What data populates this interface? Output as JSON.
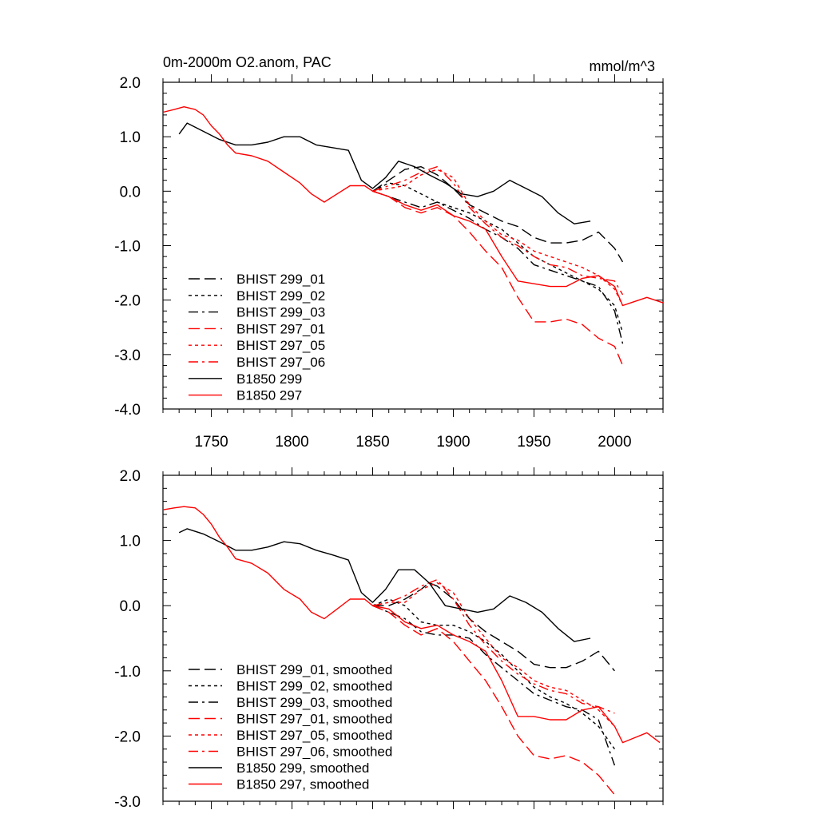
{
  "chart_data": [
    {
      "type": "line",
      "title": "0m-2000m O2.anom, PAC",
      "units": "mmol/m^3",
      "xlim": [
        1720,
        2030
      ],
      "ylim": [
        -4.0,
        2.0
      ],
      "x_ticks": [
        1750,
        1800,
        1850,
        1900,
        1950,
        2000
      ],
      "x_tick_labels": [
        "1750",
        "1800",
        "1850",
        "1900",
        "1950",
        "2000"
      ],
      "y_ticks": [
        2.0,
        1.0,
        0.0,
        -1.0,
        -2.0,
        -3.0,
        -4.0
      ],
      "y_tick_labels": [
        "2.0",
        "1.0",
        "0.0",
        "-1.0",
        "-2.0",
        "-3.0",
        "-4.0"
      ],
      "legend_placement": "lower-left",
      "series": [
        {
          "name": "BHIST 299_01",
          "color": "#000000",
          "dash": "dashed",
          "x": [
            1850,
            1860,
            1870,
            1880,
            1890,
            1900,
            1910,
            1920,
            1930,
            1940,
            1950,
            1960,
            1970,
            1980,
            1990,
            2000,
            2005
          ],
          "y": [
            0.0,
            0.2,
            0.4,
            0.45,
            0.3,
            0.05,
            -0.25,
            -0.4,
            -0.55,
            -0.65,
            -0.85,
            -0.95,
            -0.95,
            -0.9,
            -0.75,
            -1.05,
            -1.3
          ]
        },
        {
          "name": "BHIST 299_02",
          "color": "#000000",
          "dash": "dotted",
          "x": [
            1850,
            1860,
            1870,
            1880,
            1890,
            1900,
            1910,
            1920,
            1930,
            1940,
            1950,
            1960,
            1970,
            1980,
            1990,
            2000,
            2005
          ],
          "y": [
            0.0,
            0.15,
            0.1,
            -0.05,
            -0.2,
            -0.3,
            -0.4,
            -0.55,
            -0.7,
            -0.95,
            -1.2,
            -1.35,
            -1.5,
            -1.65,
            -1.8,
            -2.1,
            -2.6
          ]
        },
        {
          "name": "BHIST 299_03",
          "color": "#000000",
          "dash": "dashdot",
          "x": [
            1850,
            1860,
            1870,
            1880,
            1890,
            1900,
            1910,
            1920,
            1930,
            1940,
            1950,
            1960,
            1970,
            1980,
            1990,
            2000,
            2005
          ],
          "y": [
            0.0,
            -0.1,
            -0.2,
            -0.3,
            -0.2,
            -0.35,
            -0.5,
            -0.7,
            -0.85,
            -1.05,
            -1.35,
            -1.45,
            -1.55,
            -1.65,
            -1.75,
            -2.2,
            -2.8
          ]
        },
        {
          "name": "BHIST 297_01",
          "color": "#ff0000",
          "dash": "dashed",
          "x": [
            1850,
            1860,
            1870,
            1880,
            1890,
            1900,
            1910,
            1920,
            1930,
            1940,
            1950,
            1960,
            1970,
            1980,
            1990,
            2000,
            2005
          ],
          "y": [
            0.0,
            -0.1,
            -0.3,
            -0.4,
            -0.3,
            -0.45,
            -0.75,
            -1.1,
            -1.4,
            -1.95,
            -2.4,
            -2.4,
            -2.35,
            -2.45,
            -2.7,
            -2.85,
            -3.2
          ]
        },
        {
          "name": "BHIST 297_05",
          "color": "#ff0000",
          "dash": "dotted",
          "x": [
            1850,
            1860,
            1870,
            1880,
            1890,
            1900,
            1910,
            1920,
            1930,
            1940,
            1950,
            1960,
            1970,
            1980,
            1990,
            2000,
            2005
          ],
          "y": [
            0.0,
            0.05,
            0.1,
            0.3,
            0.4,
            0.25,
            -0.25,
            -0.55,
            -0.8,
            -0.9,
            -1.1,
            -1.2,
            -1.3,
            -1.4,
            -1.55,
            -1.8,
            -2.1
          ]
        },
        {
          "name": "BHIST 297_06",
          "color": "#ff0000",
          "dash": "dashdot",
          "x": [
            1850,
            1860,
            1870,
            1880,
            1890,
            1900,
            1910,
            1920,
            1930,
            1940,
            1950,
            1960,
            1970,
            1980,
            1990,
            2000,
            2005
          ],
          "y": [
            0.0,
            0.1,
            0.2,
            0.35,
            0.45,
            0.15,
            -0.3,
            -0.6,
            -0.85,
            -1.0,
            -1.2,
            -1.35,
            -1.4,
            -1.55,
            -1.6,
            -1.65,
            -1.9
          ]
        },
        {
          "name": "B1850 299",
          "color": "#000000",
          "dash": "solid",
          "x": [
            1730,
            1735,
            1745,
            1755,
            1765,
            1775,
            1785,
            1795,
            1805,
            1815,
            1825,
            1835,
            1843,
            1850,
            1858,
            1866,
            1876,
            1885,
            1895,
            1905,
            1915,
            1925,
            1935,
            1945,
            1955,
            1965,
            1975,
            1985
          ],
          "y": [
            1.05,
            1.25,
            1.1,
            0.95,
            0.85,
            0.85,
            0.9,
            1.0,
            1.0,
            0.85,
            0.8,
            0.75,
            0.2,
            0.05,
            0.25,
            0.55,
            0.45,
            0.3,
            0.15,
            -0.05,
            -0.1,
            0.0,
            0.2,
            0.05,
            -0.1,
            -0.4,
            -0.6,
            -0.55
          ]
        },
        {
          "name": "B1850 297",
          "color": "#ff0000",
          "dash": "solid",
          "x": [
            1720,
            1727,
            1733,
            1740,
            1745,
            1750,
            1755,
            1760,
            1765,
            1775,
            1785,
            1795,
            1805,
            1812,
            1820,
            1828,
            1836,
            1845,
            1850,
            1860,
            1870,
            1880,
            1890,
            1900,
            1910,
            1920,
            1930,
            1940,
            1950,
            1960,
            1970,
            1980,
            1990,
            2000,
            2005,
            2010,
            2020,
            2025,
            2030
          ],
          "y": [
            1.45,
            1.5,
            1.55,
            1.5,
            1.4,
            1.2,
            1.05,
            0.85,
            0.7,
            0.65,
            0.55,
            0.35,
            0.15,
            -0.05,
            -0.2,
            -0.05,
            0.1,
            0.1,
            0.0,
            -0.1,
            -0.25,
            -0.35,
            -0.25,
            -0.45,
            -0.55,
            -0.7,
            -1.2,
            -1.65,
            -1.7,
            -1.75,
            -1.75,
            -1.6,
            -1.55,
            -1.75,
            -2.1,
            -2.05,
            -1.95,
            -2.0,
            -2.05
          ]
        }
      ]
    },
    {
      "type": "line",
      "title": "",
      "units": "",
      "xlim": [
        1720,
        2030
      ],
      "ylim": [
        -3.0,
        2.0
      ],
      "x_ticks": [
        1750,
        1800,
        1850,
        1900,
        1950,
        2000
      ],
      "x_tick_labels": [
        "",
        "",
        "",
        "",
        "",
        ""
      ],
      "y_ticks": [
        2.0,
        1.0,
        0.0,
        -1.0,
        -2.0,
        -3.0
      ],
      "y_tick_labels": [
        "2.0",
        "1.0",
        "0.0",
        "-1.0",
        "-2.0",
        "-3.0"
      ],
      "legend_placement": "lower-left",
      "series": [
        {
          "name": "BHIST 299_01, smoothed",
          "color": "#000000",
          "dash": "dashed",
          "x": [
            1850,
            1860,
            1870,
            1880,
            1885,
            1890,
            1900,
            1910,
            1920,
            1930,
            1940,
            1950,
            1960,
            1970,
            1980,
            1990,
            2000
          ],
          "y": [
            0.0,
            0.0,
            0.1,
            0.25,
            0.35,
            0.3,
            0.1,
            -0.2,
            -0.4,
            -0.55,
            -0.7,
            -0.9,
            -0.95,
            -0.95,
            -0.85,
            -0.7,
            -1.0
          ]
        },
        {
          "name": "BHIST 299_02, smoothed",
          "color": "#000000",
          "dash": "dotted",
          "x": [
            1850,
            1860,
            1870,
            1880,
            1890,
            1900,
            1910,
            1920,
            1930,
            1940,
            1950,
            1960,
            1970,
            1980,
            1990,
            2000
          ],
          "y": [
            0.0,
            0.1,
            0.0,
            -0.25,
            -0.3,
            -0.3,
            -0.4,
            -0.55,
            -0.75,
            -1.0,
            -1.25,
            -1.4,
            -1.5,
            -1.65,
            -1.85,
            -2.2
          ]
        },
        {
          "name": "BHIST 299_03, smoothed",
          "color": "#000000",
          "dash": "dashdot",
          "x": [
            1850,
            1860,
            1870,
            1880,
            1890,
            1900,
            1910,
            1920,
            1930,
            1940,
            1950,
            1960,
            1970,
            1980,
            1990,
            2000
          ],
          "y": [
            0.0,
            -0.1,
            -0.2,
            -0.4,
            -0.45,
            -0.45,
            -0.5,
            -0.75,
            -0.95,
            -1.15,
            -1.35,
            -1.45,
            -1.55,
            -1.6,
            -1.75,
            -2.45
          ]
        },
        {
          "name": "BHIST 297_01, smoothed",
          "color": "#ff0000",
          "dash": "dashed",
          "x": [
            1850,
            1860,
            1870,
            1880,
            1890,
            1900,
            1910,
            1920,
            1930,
            1940,
            1950,
            1960,
            1970,
            1980,
            1990,
            2000
          ],
          "y": [
            0.0,
            -0.1,
            -0.3,
            -0.45,
            -0.35,
            -0.55,
            -0.85,
            -1.15,
            -1.55,
            -2.0,
            -2.3,
            -2.35,
            -2.3,
            -2.4,
            -2.6,
            -2.9
          ]
        },
        {
          "name": "BHIST 297_05, smoothed",
          "color": "#ff0000",
          "dash": "dotted",
          "x": [
            1850,
            1860,
            1870,
            1880,
            1890,
            1900,
            1910,
            1920,
            1930,
            1940,
            1950,
            1960,
            1970,
            1980,
            1990,
            2000
          ],
          "y": [
            0.0,
            0.05,
            0.05,
            0.25,
            0.35,
            0.2,
            -0.2,
            -0.5,
            -0.8,
            -0.95,
            -1.15,
            -1.25,
            -1.3,
            -1.45,
            -1.6,
            -1.85
          ]
        },
        {
          "name": "BHIST 297_06, smoothed",
          "color": "#ff0000",
          "dash": "dashdot",
          "x": [
            1850,
            1860,
            1870,
            1880,
            1890,
            1900,
            1910,
            1920,
            1930,
            1940,
            1950,
            1960,
            1970,
            1980,
            1990,
            2000
          ],
          "y": [
            0.0,
            0.05,
            0.15,
            0.3,
            0.4,
            0.1,
            -0.3,
            -0.6,
            -0.85,
            -1.05,
            -1.2,
            -1.3,
            -1.35,
            -1.5,
            -1.55,
            -1.65
          ]
        },
        {
          "name": "B1850 299, smoothed",
          "color": "#000000",
          "dash": "solid",
          "x": [
            1730,
            1735,
            1745,
            1755,
            1765,
            1775,
            1785,
            1795,
            1805,
            1815,
            1825,
            1835,
            1843,
            1850,
            1858,
            1866,
            1876,
            1885,
            1895,
            1905,
            1915,
            1925,
            1935,
            1945,
            1955,
            1965,
            1975,
            1985
          ],
          "y": [
            1.12,
            1.18,
            1.1,
            0.98,
            0.85,
            0.85,
            0.9,
            0.98,
            0.95,
            0.85,
            0.78,
            0.7,
            0.2,
            0.05,
            0.25,
            0.55,
            0.55,
            0.35,
            0.0,
            -0.05,
            -0.1,
            -0.05,
            0.15,
            0.05,
            -0.1,
            -0.35,
            -0.55,
            -0.5
          ]
        },
        {
          "name": "B1850 297, smoothed",
          "color": "#ff0000",
          "dash": "solid",
          "x": [
            1720,
            1727,
            1733,
            1740,
            1745,
            1750,
            1755,
            1760,
            1765,
            1775,
            1785,
            1795,
            1805,
            1812,
            1820,
            1828,
            1836,
            1845,
            1850,
            1860,
            1870,
            1880,
            1890,
            1900,
            1910,
            1920,
            1930,
            1940,
            1950,
            1960,
            1970,
            1980,
            1990,
            2000,
            2005,
            2010,
            2020,
            2028
          ],
          "y": [
            1.47,
            1.5,
            1.52,
            1.5,
            1.4,
            1.25,
            1.05,
            0.9,
            0.72,
            0.65,
            0.5,
            0.25,
            0.1,
            -0.1,
            -0.2,
            -0.05,
            0.1,
            0.1,
            0.0,
            -0.05,
            -0.25,
            -0.35,
            -0.3,
            -0.45,
            -0.55,
            -0.7,
            -1.15,
            -1.7,
            -1.7,
            -1.75,
            -1.75,
            -1.6,
            -1.55,
            -1.85,
            -2.1,
            -2.05,
            -1.95,
            -2.1
          ]
        }
      ]
    }
  ]
}
